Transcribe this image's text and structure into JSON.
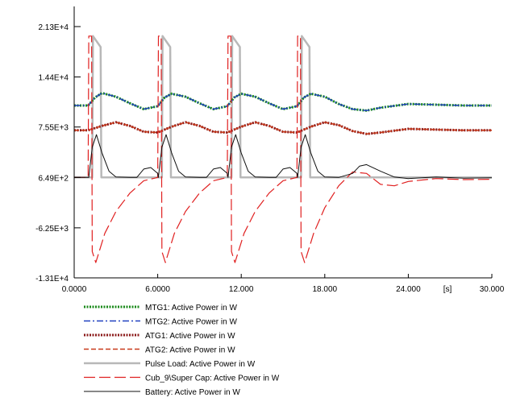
{
  "chart_data": {
    "type": "line",
    "x_unit": "[s]",
    "xlim": [
      0,
      30
    ],
    "ylim": [
      -13100,
      21300
    ],
    "x_ticks": [
      {
        "value": 0,
        "label": "0.0000"
      },
      {
        "value": 6,
        "label": "6.0000"
      },
      {
        "value": 12,
        "label": "12.000"
      },
      {
        "value": 18,
        "label": "18.000"
      },
      {
        "value": 24,
        "label": "24.000"
      },
      {
        "value": 30,
        "label": "30.000"
      }
    ],
    "y_ticks": [
      {
        "value": 21300,
        "label": "2.13E+4"
      },
      {
        "value": 14400,
        "label": "1.44E+4"
      },
      {
        "value": 7550,
        "label": "7.55E+3"
      },
      {
        "value": 649,
        "label": "6.49E+2"
      },
      {
        "value": -6250,
        "label": "-6.25E+3"
      },
      {
        "value": -13100,
        "label": "-1.31E+4"
      }
    ],
    "legend_position": "bottom",
    "series": [
      {
        "name": "MTG1: Active Power in W",
        "color": "#1a8a1a",
        "dash": "2,1.5",
        "width": 3,
        "x": [
          0,
          1,
          1.5,
          2,
          3,
          4,
          5,
          6,
          6.5,
          7,
          8,
          9,
          10,
          11,
          11.5,
          12,
          13,
          14,
          15,
          16,
          16.5,
          17,
          18,
          19,
          20,
          21,
          22,
          24,
          26,
          28,
          30
        ],
        "y": [
          10500,
          10500,
          11600,
          12200,
          11700,
          10800,
          10000,
          10400,
          11600,
          12100,
          11700,
          10800,
          10000,
          10400,
          11600,
          12100,
          11700,
          10800,
          10000,
          10400,
          11600,
          12100,
          11700,
          10700,
          10000,
          9800,
          10200,
          10700,
          10600,
          10500,
          10500
        ]
      },
      {
        "name": "MTG2: Active Power in W",
        "color": "#2040c0",
        "dash": "8,3,2,3",
        "width": 1.5,
        "x": [
          0,
          1,
          1.5,
          2,
          3,
          4,
          5,
          6,
          6.5,
          7,
          8,
          9,
          10,
          11,
          11.5,
          12,
          13,
          14,
          15,
          16,
          16.5,
          17,
          18,
          19,
          20,
          21,
          22,
          24,
          26,
          28,
          30
        ],
        "y": [
          10500,
          10500,
          11600,
          12200,
          11700,
          10800,
          10000,
          10400,
          11600,
          12100,
          11700,
          10800,
          10000,
          10400,
          11600,
          12100,
          11700,
          10800,
          10000,
          10400,
          11600,
          12100,
          11700,
          10700,
          10000,
          9800,
          10200,
          10700,
          10600,
          10500,
          10500
        ]
      },
      {
        "name": "ATG1: Active Power in W",
        "color": "#8b1a1a",
        "dash": "2,1.5",
        "width": 3,
        "x": [
          0,
          1,
          2,
          3,
          4,
          5,
          6,
          7,
          8,
          9,
          10,
          11,
          12,
          13,
          14,
          15,
          16,
          17,
          18,
          19,
          20,
          21,
          22,
          24,
          26,
          28,
          30
        ],
        "y": [
          7100,
          7100,
          7700,
          8200,
          7700,
          6900,
          6800,
          7600,
          8200,
          7700,
          6900,
          6800,
          7600,
          8200,
          7700,
          6900,
          6800,
          7600,
          8200,
          7800,
          7000,
          6600,
          6800,
          7300,
          7200,
          7100,
          7100
        ]
      },
      {
        "name": "ATG2: Active Power in W",
        "color": "#c83a1a",
        "dash": "6,3",
        "width": 1.5,
        "x": [
          0,
          1,
          2,
          3,
          4,
          5,
          6,
          7,
          8,
          9,
          10,
          11,
          12,
          13,
          14,
          15,
          16,
          17,
          18,
          19,
          20,
          21,
          22,
          24,
          26,
          28,
          30
        ],
        "y": [
          7100,
          7100,
          7700,
          8200,
          7700,
          6900,
          6800,
          7600,
          8200,
          7700,
          6900,
          6800,
          7600,
          8200,
          7700,
          6900,
          6800,
          7600,
          8200,
          7800,
          7000,
          6600,
          6800,
          7300,
          7200,
          7100,
          7100
        ]
      },
      {
        "name": "Pulse Load: Active Power in W",
        "color": "#b8b8b8",
        "dash": "",
        "width": 2.5,
        "x": [
          0,
          1.3,
          1.35,
          1.9,
          1.95,
          6.3,
          6.35,
          6.9,
          6.95,
          11.3,
          11.35,
          11.9,
          11.95,
          16.3,
          16.35,
          16.9,
          16.95,
          30
        ],
        "y": [
          650,
          650,
          20000,
          18500,
          650,
          650,
          20000,
          18500,
          650,
          650,
          20000,
          18500,
          650,
          650,
          20000,
          18500,
          650,
          650
        ]
      },
      {
        "name": "Cub_9\\Super Cap: Active Power in W",
        "color": "#e02020",
        "dash": "14,5",
        "width": 1.2,
        "x": [
          0,
          1,
          1.05,
          1.25,
          1.3,
          1.55,
          2.2,
          3,
          4,
          5,
          6,
          6.05,
          6.25,
          6.3,
          6.55,
          7.2,
          8,
          9,
          10,
          11,
          11.05,
          11.25,
          11.3,
          11.55,
          12.2,
          13,
          14,
          15,
          16,
          16.05,
          16.25,
          16.3,
          16.55,
          17.2,
          18,
          19,
          20,
          21,
          22,
          23,
          24,
          26,
          28,
          30
        ],
        "y": [
          650,
          650,
          20000,
          20000,
          -9500,
          -11000,
          -7000,
          -4000,
          -1500,
          200,
          650,
          20000,
          20000,
          -9500,
          -11000,
          -7000,
          -4000,
          -1500,
          200,
          650,
          20000,
          20000,
          -9500,
          -11000,
          -7000,
          -4000,
          -1500,
          200,
          650,
          20000,
          20000,
          -9500,
          -11000,
          -7000,
          -3500,
          -500,
          1400,
          1200,
          -300,
          -500,
          100,
          500,
          350,
          400
        ]
      },
      {
        "name": "Battery: Active Power in W",
        "color": "#101010",
        "dash": "",
        "width": 1,
        "x": [
          0,
          1.05,
          1.1,
          1.3,
          1.6,
          2,
          2.5,
          3,
          4,
          4.5,
          5,
          5.5,
          6,
          6.05,
          6.1,
          6.3,
          6.6,
          7,
          7.5,
          8,
          9,
          9.5,
          10,
          10.5,
          11,
          11.05,
          11.1,
          11.3,
          11.6,
          12,
          12.5,
          13,
          14,
          14.5,
          15,
          15.5,
          16,
          16.05,
          16.1,
          16.3,
          16.6,
          17,
          17.5,
          18,
          19,
          20,
          20.5,
          21,
          22,
          23,
          24,
          26,
          28,
          30
        ],
        "y": [
          650,
          650,
          1500,
          4800,
          6500,
          4000,
          1500,
          700,
          650,
          650,
          1800,
          2000,
          1200,
          650,
          1500,
          4800,
          6500,
          4000,
          1500,
          700,
          650,
          650,
          1800,
          2000,
          1200,
          650,
          1500,
          4800,
          6500,
          4000,
          1500,
          700,
          650,
          650,
          1800,
          2000,
          1200,
          650,
          1500,
          4800,
          6500,
          4000,
          1500,
          700,
          650,
          1200,
          2200,
          2400,
          1500,
          700,
          500,
          700,
          550,
          600
        ]
      }
    ]
  }
}
